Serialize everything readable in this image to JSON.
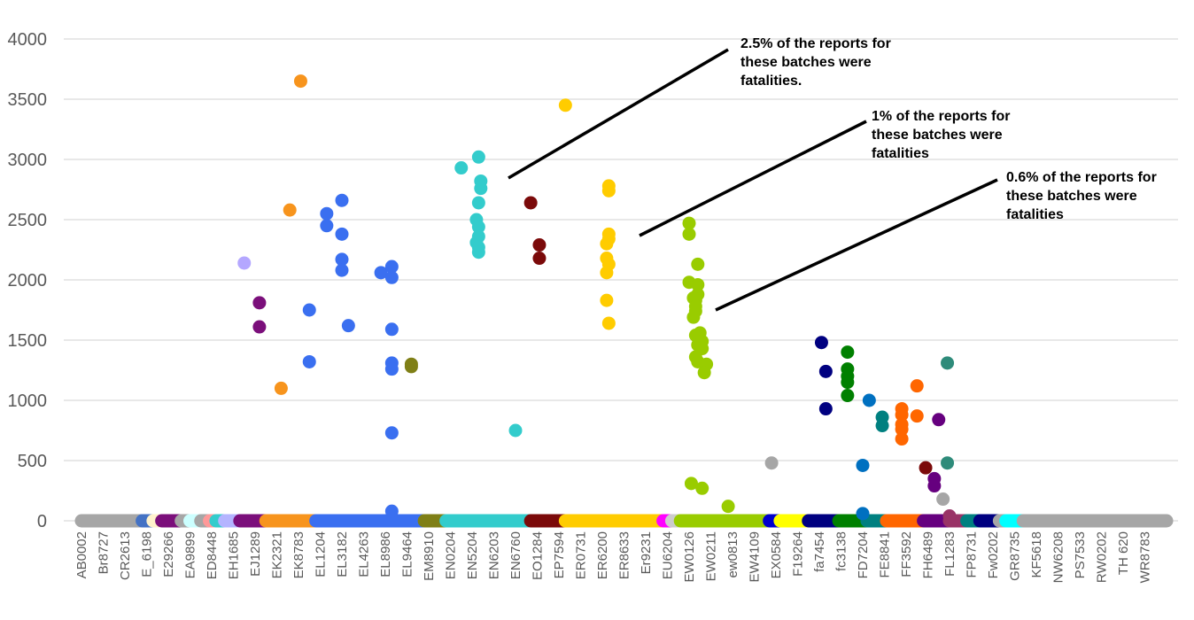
{
  "chart_data": {
    "type": "scatter",
    "title": "",
    "xlabel": "",
    "ylabel": "",
    "ylim": [
      0,
      4000
    ],
    "yticks": [
      0,
      500,
      1000,
      1500,
      2000,
      2500,
      3000,
      3500,
      4000
    ],
    "grid": true,
    "legend": "none",
    "x_tick_labels": [
      "AB0002",
      "Br8727",
      "CR2613",
      "E_6198",
      "E29266",
      "EA9899",
      "ED8448",
      "EH1685",
      "EJ1289",
      "EK2321",
      "EK8783",
      "EL1204",
      "EL3182",
      "EL4263",
      "EL8986",
      "EL9464",
      "EM8910",
      "EN0204",
      "EN5204",
      "EN6203",
      "EN6760",
      "EO1284",
      "EP7594",
      "ER0731",
      "ER6200",
      "ER8633",
      "Er9231",
      "EU6204",
      "EW0126",
      "EW0211",
      "ew0813",
      "EW4109",
      "EX0584",
      "F19264",
      "fa7454",
      "fc3138",
      "FD7204",
      "FE8841",
      "FF3592",
      "FH6489",
      "FL1283",
      "FP8731",
      "Fw0202",
      "GR8735",
      "KF5618",
      "NW6208",
      "PS7533",
      "RW0202",
      "TH 620",
      "WR8783"
    ],
    "baseline_segments": [
      {
        "from": 0,
        "to": 2.8,
        "color": "#a6a6a6"
      },
      {
        "from": 2.8,
        "to": 3.5,
        "color": "#4472c4"
      },
      {
        "from": 3.3,
        "to": 3.7,
        "color": "#fff2cc"
      },
      {
        "from": 3.7,
        "to": 4.6,
        "color": "#7b0f7b"
      },
      {
        "from": 4.6,
        "to": 5.0,
        "color": "#a6a6a6"
      },
      {
        "from": 5.0,
        "to": 5.5,
        "color": "#ccffff"
      },
      {
        "from": 5.5,
        "to": 5.9,
        "color": "#a6a6a6"
      },
      {
        "from": 5.9,
        "to": 6.2,
        "color": "#ff9999"
      },
      {
        "from": 6.2,
        "to": 6.6,
        "color": "#33cccc"
      },
      {
        "from": 6.6,
        "to": 7.3,
        "color": "#b4b4ff"
      },
      {
        "from": 7.3,
        "to": 8.5,
        "color": "#7b0f7b"
      },
      {
        "from": 8.5,
        "to": 10.8,
        "color": "#f7941d"
      },
      {
        "from": 10.8,
        "to": 15.8,
        "color": "#3a6ff0"
      },
      {
        "from": 15.8,
        "to": 16.8,
        "color": "#7f7f16"
      },
      {
        "from": 16.8,
        "to": 20.7,
        "color": "#33cccc"
      },
      {
        "from": 20.7,
        "to": 22.3,
        "color": "#7b0a0a"
      },
      {
        "from": 22.3,
        "to": 26.8,
        "color": "#ffcc00"
      },
      {
        "from": 26.8,
        "to": 27.2,
        "color": "#ff00ff"
      },
      {
        "from": 27.2,
        "to": 27.6,
        "color": "#cccccc"
      },
      {
        "from": 27.6,
        "to": 31.7,
        "color": "#99cc00"
      },
      {
        "from": 31.7,
        "to": 32.2,
        "color": "#0000cc"
      },
      {
        "from": 32.2,
        "to": 33.5,
        "color": "#ffff00"
      },
      {
        "from": 33.5,
        "to": 34.9,
        "color": "#000080"
      },
      {
        "from": 34.9,
        "to": 36.2,
        "color": "#008000"
      },
      {
        "from": 36.2,
        "to": 37.1,
        "color": "#008080"
      },
      {
        "from": 37.1,
        "to": 38.8,
        "color": "#ff6600"
      },
      {
        "from": 38.8,
        "to": 40.0,
        "color": "#66007f"
      },
      {
        "from": 40.0,
        "to": 40.8,
        "color": "#993366"
      },
      {
        "from": 40.8,
        "to": 41.4,
        "color": "#008080"
      },
      {
        "from": 41.4,
        "to": 42.3,
        "color": "#000080"
      },
      {
        "from": 42.3,
        "to": 42.6,
        "color": "#a6a6a6"
      },
      {
        "from": 42.6,
        "to": 43.4,
        "color": "#00ffff"
      },
      {
        "from": 43.4,
        "to": 50,
        "color": "#a6a6a6"
      }
    ],
    "series": [
      {
        "color": "#b4a7ff",
        "points": [
          [
            7.5,
            2140
          ]
        ]
      },
      {
        "color": "#7b0f7b",
        "points": [
          [
            8.2,
            1810
          ],
          [
            8.2,
            1610
          ]
        ]
      },
      {
        "color": "#f7941d",
        "points": [
          [
            9.2,
            1100
          ],
          [
            9.6,
            2580
          ],
          [
            10.1,
            3650
          ]
        ]
      },
      {
        "color": "#3a6ff0",
        "points": [
          [
            10.5,
            1750
          ],
          [
            10.5,
            1320
          ],
          [
            11.3,
            2550
          ],
          [
            11.3,
            2450
          ],
          [
            12.0,
            2660
          ],
          [
            12.0,
            2380
          ],
          [
            12.0,
            2170
          ],
          [
            12.0,
            2080
          ],
          [
            12.3,
            1620
          ],
          [
            13.8,
            2060
          ],
          [
            14.3,
            2110
          ],
          [
            14.3,
            2020
          ],
          [
            14.3,
            1590
          ],
          [
            14.3,
            1310
          ],
          [
            14.3,
            1260
          ],
          [
            14.3,
            730
          ],
          [
            14.3,
            80
          ]
        ]
      },
      {
        "color": "#7f7f16",
        "points": [
          [
            15.2,
            1300
          ],
          [
            15.2,
            1280
          ]
        ]
      },
      {
        "color": "#33cccc",
        "points": [
          [
            17.5,
            2930
          ],
          [
            18.3,
            3020
          ],
          [
            18.4,
            2820
          ],
          [
            18.4,
            2760
          ],
          [
            18.3,
            2640
          ],
          [
            18.2,
            2500
          ],
          [
            18.3,
            2440
          ],
          [
            18.3,
            2360
          ],
          [
            18.2,
            2310
          ],
          [
            18.3,
            2270
          ],
          [
            18.3,
            2230
          ],
          [
            20.0,
            750
          ]
        ]
      },
      {
        "color": "#7b0a0a",
        "points": [
          [
            20.7,
            2640
          ],
          [
            21.1,
            2290
          ],
          [
            21.1,
            2180
          ]
        ]
      },
      {
        "color": "#ffcc00",
        "points": [
          [
            22.3,
            3450
          ],
          [
            24.3,
            2780
          ],
          [
            24.3,
            2740
          ],
          [
            24.3,
            2380
          ],
          [
            24.3,
            2340
          ],
          [
            24.2,
            2300
          ],
          [
            24.2,
            2180
          ],
          [
            24.3,
            2130
          ],
          [
            24.2,
            2060
          ],
          [
            24.2,
            1830
          ],
          [
            24.3,
            1640
          ]
        ]
      },
      {
        "color": "#99cc00",
        "points": [
          [
            28.0,
            2470
          ],
          [
            28.0,
            2380
          ],
          [
            28.4,
            2130
          ],
          [
            28.0,
            1980
          ],
          [
            28.4,
            1960
          ],
          [
            28.4,
            1880
          ],
          [
            28.2,
            1850
          ],
          [
            28.3,
            1830
          ],
          [
            28.3,
            1780
          ],
          [
            28.3,
            1740
          ],
          [
            28.2,
            1690
          ],
          [
            28.5,
            1560
          ],
          [
            28.3,
            1540
          ],
          [
            28.6,
            1490
          ],
          [
            28.4,
            1460
          ],
          [
            28.6,
            1430
          ],
          [
            28.3,
            1360
          ],
          [
            28.4,
            1320
          ],
          [
            28.8,
            1300
          ],
          [
            28.7,
            1230
          ],
          [
            28.1,
            310
          ],
          [
            28.6,
            270
          ],
          [
            29.8,
            120
          ]
        ]
      },
      {
        "color": "#a6a6a6",
        "points": [
          [
            31.8,
            480
          ]
        ]
      },
      {
        "color": "#000080",
        "points": [
          [
            34.1,
            1480
          ],
          [
            34.3,
            1240
          ],
          [
            34.3,
            930
          ]
        ]
      },
      {
        "color": "#008000",
        "points": [
          [
            35.3,
            1400
          ],
          [
            35.3,
            1260
          ],
          [
            35.3,
            1200
          ],
          [
            35.3,
            1150
          ],
          [
            35.3,
            1040
          ]
        ]
      },
      {
        "color": "#0070c0",
        "points": [
          [
            36.3,
            1000
          ],
          [
            36.0,
            460
          ],
          [
            36.0,
            60
          ]
        ]
      },
      {
        "color": "#008080",
        "points": [
          [
            36.9,
            860
          ],
          [
            36.9,
            790
          ]
        ]
      },
      {
        "color": "#ff6600",
        "points": [
          [
            37.8,
            930
          ],
          [
            37.8,
            880
          ],
          [
            37.8,
            800
          ],
          [
            37.8,
            760
          ],
          [
            37.8,
            680
          ],
          [
            38.5,
            1120
          ],
          [
            38.5,
            870
          ]
        ]
      },
      {
        "color": "#7b0a0a",
        "points": [
          [
            38.9,
            440
          ]
        ]
      },
      {
        "color": "#66007f",
        "points": [
          [
            39.5,
            840
          ],
          [
            39.3,
            350
          ],
          [
            39.3,
            290
          ]
        ]
      },
      {
        "color": "#2e8b7a",
        "points": [
          [
            39.9,
            1310
          ],
          [
            39.9,
            480
          ]
        ]
      },
      {
        "color": "#a6a6a6",
        "points": [
          [
            39.7,
            180
          ]
        ]
      },
      {
        "color": "#993366",
        "points": [
          [
            40.0,
            40
          ]
        ]
      }
    ],
    "annotations": [
      {
        "lines": [
          "2.5% of the reports for",
          "these batches were",
          "fatalities."
        ]
      },
      {
        "lines": [
          "1% of the reports for",
          "these batches were",
          "fatalities"
        ]
      },
      {
        "lines": [
          "0.6% of the reports for",
          "these batches were",
          "fatalities"
        ]
      }
    ]
  }
}
